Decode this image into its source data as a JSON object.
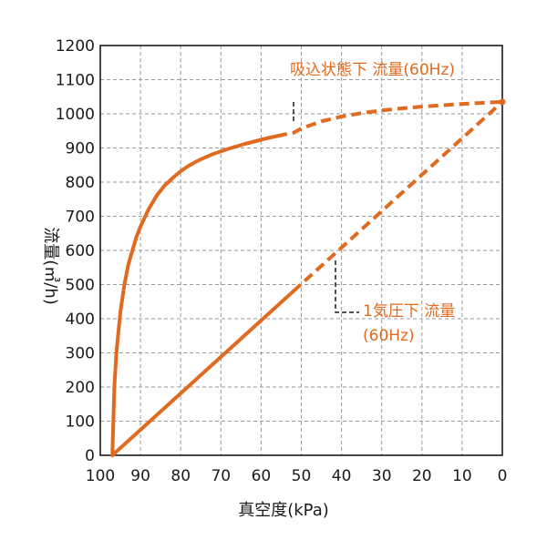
{
  "chart_data": {
    "type": "line",
    "xlabel": "真空度(kPa)",
    "ylabel": "流量(㎥/h)",
    "x_reversed": true,
    "xlim": [
      100,
      0
    ],
    "ylim": [
      0,
      1200
    ],
    "x_ticks": [
      "100",
      "90",
      "80",
      "70",
      "60",
      "50",
      "40",
      "30",
      "20",
      "10",
      "0"
    ],
    "y_ticks": [
      "0",
      "100",
      "200",
      "300",
      "400",
      "500",
      "600",
      "700",
      "800",
      "900",
      "1000",
      "1100",
      "1200"
    ],
    "grid": true,
    "series_color": "#e06a1f",
    "series": [
      {
        "name": "吸込状態下 流量(60Hz)",
        "x": [
          97,
          96.5,
          96,
          95,
          94,
          93,
          92,
          91,
          90,
          88,
          86,
          84,
          82,
          80,
          78,
          76,
          74,
          72,
          70,
          68,
          66,
          64,
          62,
          60,
          58,
          56,
          54,
          52,
          50,
          45,
          40,
          35,
          30,
          25,
          20,
          15,
          10,
          5,
          0
        ],
        "y": [
          0,
          200,
          300,
          420,
          500,
          560,
          600,
          640,
          670,
          720,
          760,
          790,
          812,
          832,
          848,
          861,
          872,
          882,
          890,
          898,
          905,
          912,
          918,
          924,
          930,
          935,
          940,
          944,
          957,
          978,
          992,
          1002,
          1010,
          1016,
          1021,
          1025,
          1029,
          1032,
          1035
        ],
        "solid_until_x": 55
      },
      {
        "name": "1気圧下 流量(60Hz)",
        "x": [
          97,
          0
        ],
        "y": [
          0,
          1035
        ],
        "solid_until_x": 52
      }
    ],
    "annotations": {
      "suction_label": "吸込状態下 流量(60Hz)",
      "atm_label_line1": "1気圧下 流量",
      "atm_label_line2": "(60Hz)"
    }
  }
}
